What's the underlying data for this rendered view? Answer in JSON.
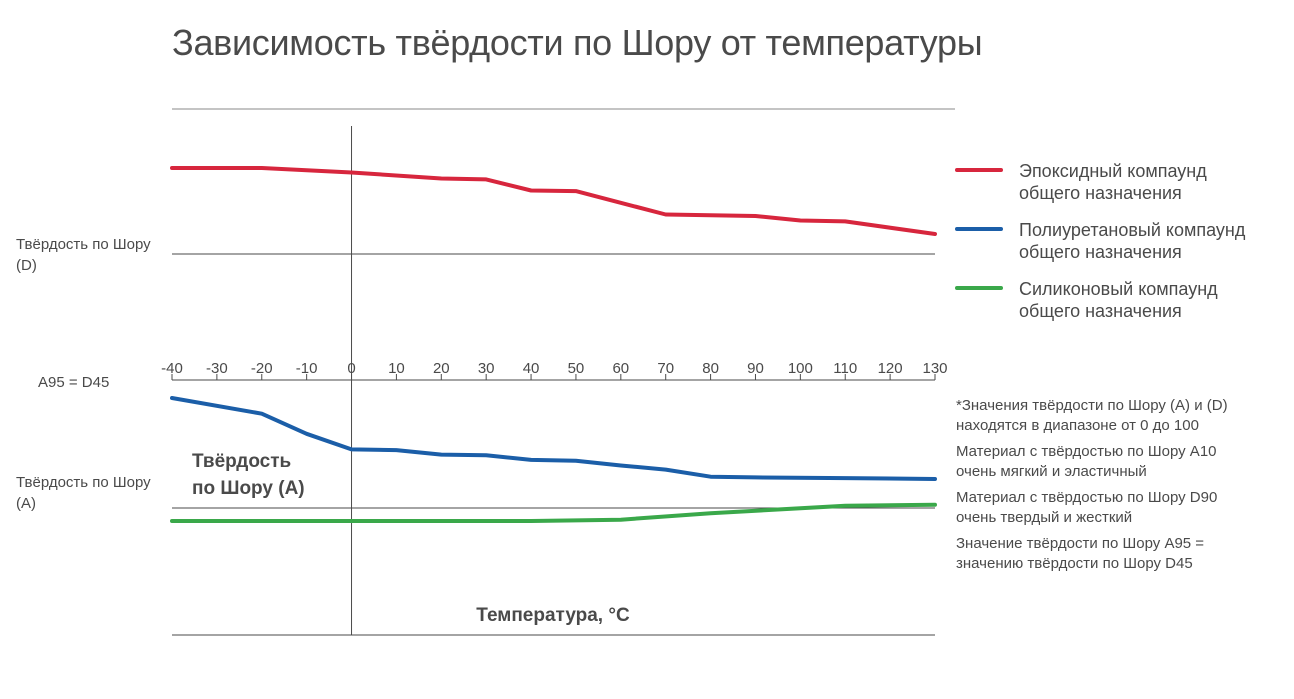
{
  "chart_data": {
    "type": "line",
    "title": "Зависимость твёрдости по Шору от температуры",
    "xlabel": "Температура, °C",
    "x_ticks": [
      -40,
      -30,
      -20,
      -10,
      0,
      10,
      20,
      30,
      40,
      50,
      60,
      70,
      80,
      90,
      100,
      110,
      120,
      130
    ],
    "x_tick_labels": [
      "-40",
      "-30",
      "-20",
      "-10",
      "0",
      "10",
      "20",
      "30",
      "40",
      "50",
      "60",
      "70",
      "80",
      "90",
      "100",
      "110",
      "120",
      "130"
    ],
    "xlim": [
      -40,
      130
    ],
    "reference_label": "A95 = D45",
    "upper_panel_label": "Твёрдость по Шору (D)",
    "lower_panel_label": "Твёрдость по Шору (A)",
    "lower_panel_title": "Твёрдость по Шору (A)",
    "series": [
      {
        "name": "Эпоксидный компаунд общего назначения",
        "panel": "D",
        "color": "#d7263d",
        "x": [
          -40,
          -20,
          0,
          20,
          30,
          40,
          50,
          70,
          90,
          100,
          110,
          130
        ],
        "y": [
          78,
          78,
          76.5,
          74.5,
          74.2,
          70.5,
          70.3,
          62.5,
          62,
          60.5,
          60.2,
          56
        ]
      },
      {
        "name": "Полиуретановый компаунд общего назначения",
        "panel": "A",
        "color": "#1b5ea8",
        "x": [
          -40,
          -20,
          -10,
          0,
          10,
          20,
          30,
          40,
          50,
          60,
          70,
          80,
          90,
          110,
          130
        ],
        "y": [
          95,
          88,
          79,
          72,
          71.7,
          69.7,
          69.4,
          67.3,
          66.9,
          64.8,
          63,
          59.8,
          59.5,
          59.2,
          58.8
        ]
      },
      {
        "name": "Силиконовый компаунд общего назначения",
        "panel": "A",
        "color": "#3aa84a",
        "x": [
          -40,
          0,
          40,
          60,
          80,
          110,
          130
        ],
        "y": [
          40,
          40,
          40,
          40.6,
          43.5,
          46.8,
          47.3
        ]
      }
    ],
    "grid": false,
    "legend_position": "right"
  },
  "notes": [
    "*Значения твёрдости по Шору (A) и (D) находятся в диапазоне от 0 до 100",
    "Материал с твёрдостью по Шору A10 очень мягкий и эластичный",
    "Материал с твёрдостью по Шору D90 очень твердый и жесткий",
    "Значение твёрдости по Шору A95 = значению твёрдости по Шору D45"
  ],
  "colors": {
    "axis": "#4a4a4a",
    "text": "#4a4a4a"
  }
}
